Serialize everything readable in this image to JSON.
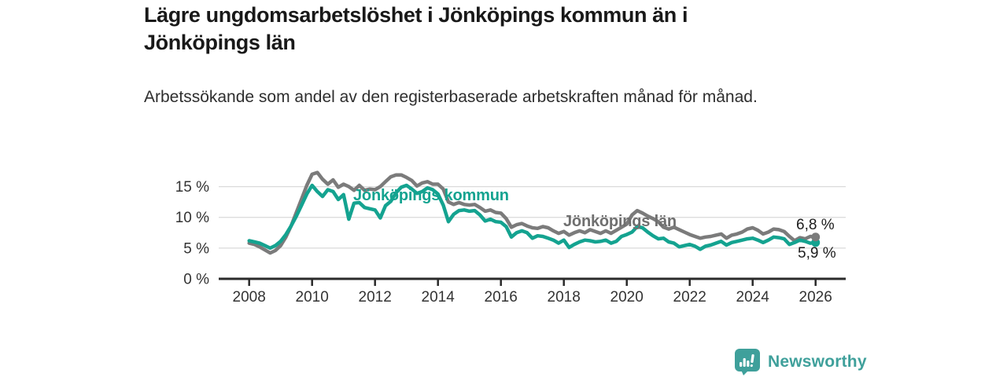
{
  "header": {
    "title": "Lägre ungdomsarbetslöshet i Jönköpings kommun än i Jönköpings län",
    "subtitle": "Arbetssökande som andel av den registerbaserade arbetskraften månad för månad."
  },
  "chart_data": {
    "type": "line",
    "title": "Lägre ungdomsarbetslöshet i Jönköpings kommun än i Jönköpings län",
    "subtitle": "Arbetssökande som andel av den registerbaserade arbetskraften månad för månad.",
    "x_start": 2008,
    "x_end": 2026,
    "x_step_months": 2,
    "unit": "%",
    "ylim": [
      0,
      17.5
    ],
    "grid": "horizontal",
    "legend_position": "inline-labels",
    "yticks": [
      0,
      5,
      10,
      15
    ],
    "ytick_labels": [
      "0 %",
      "5 %",
      "10 %",
      "15 %"
    ],
    "xticks": [
      2008,
      2010,
      2012,
      2014,
      2016,
      2018,
      2020,
      2022,
      2024,
      2026
    ],
    "colors": {
      "axis": "#2a2a2a",
      "grid": "#dadada",
      "tick_label": "#333333"
    },
    "series": [
      {
        "name": "Jönköpings kommun",
        "color": "#14a390",
        "label_color": "#14a390",
        "end_label": "5,9 %",
        "end_value": 5.9,
        "values": [
          6.2,
          6.0,
          5.8,
          5.4,
          5.0,
          5.4,
          6.1,
          7.2,
          8.6,
          10.2,
          12.0,
          13.8,
          15.2,
          14.2,
          13.4,
          14.5,
          14.2,
          12.9,
          13.7,
          9.7,
          12.3,
          12.4,
          11.6,
          11.4,
          11.2,
          9.9,
          11.9,
          12.6,
          14.0,
          14.9,
          15.2,
          14.6,
          13.9,
          14.2,
          14.8,
          14.5,
          13.8,
          12.0,
          9.3,
          10.5,
          11.1,
          11.2,
          11.0,
          11.1,
          10.4,
          9.4,
          9.7,
          9.3,
          9.2,
          8.5,
          6.8,
          7.5,
          7.8,
          7.5,
          6.6,
          7.0,
          6.9,
          6.6,
          6.3,
          5.8,
          6.3,
          5.1,
          5.6,
          6.0,
          6.3,
          6.2,
          6.0,
          6.1,
          6.3,
          5.8,
          6.1,
          6.9,
          7.2,
          7.6,
          8.5,
          8.3,
          7.6,
          7.0,
          6.5,
          6.6,
          6.0,
          5.8,
          5.2,
          5.4,
          5.6,
          5.3,
          4.8,
          5.3,
          5.5,
          5.8,
          6.1,
          5.5,
          5.9,
          6.1,
          6.3,
          6.5,
          6.6,
          6.3,
          5.9,
          6.3,
          6.8,
          6.7,
          6.5,
          5.6,
          5.9,
          6.3,
          6.1,
          5.8,
          5.9
        ]
      },
      {
        "name": "Jönköpings län",
        "color": "#7b7b7b",
        "label_color": "#6f6f6f",
        "end_label": "6,8 %",
        "end_value": 6.8,
        "values": [
          5.8,
          5.6,
          5.2,
          4.7,
          4.2,
          4.6,
          5.4,
          6.8,
          8.6,
          10.8,
          13.0,
          15.2,
          17.0,
          17.3,
          16.2,
          15.4,
          16.1,
          14.9,
          15.4,
          15.0,
          14.4,
          15.2,
          14.4,
          14.6,
          14.5,
          15.0,
          15.8,
          16.6,
          16.9,
          16.9,
          16.5,
          16.0,
          15.1,
          15.6,
          15.8,
          15.4,
          15.4,
          14.6,
          12.5,
          12.1,
          12.4,
          12.1,
          12.0,
          12.1,
          11.6,
          11.0,
          11.2,
          10.8,
          10.7,
          9.8,
          8.4,
          8.8,
          9.0,
          8.6,
          8.3,
          8.2,
          8.5,
          8.3,
          7.8,
          7.4,
          7.7,
          7.1,
          7.5,
          7.8,
          7.5,
          8.0,
          7.7,
          7.4,
          7.8,
          7.4,
          7.9,
          8.4,
          8.9,
          10.4,
          11.1,
          10.7,
          10.2,
          9.8,
          9.3,
          8.4,
          8.1,
          8.4,
          8.0,
          7.6,
          7.2,
          6.9,
          6.6,
          6.8,
          6.9,
          7.1,
          7.3,
          6.6,
          7.1,
          7.3,
          7.6,
          8.1,
          8.3,
          7.9,
          7.3,
          7.6,
          8.1,
          8.0,
          7.7,
          6.9,
          6.2,
          6.7,
          6.5,
          6.9,
          6.8
        ]
      }
    ]
  },
  "footer": {
    "brand": "Newsworthy",
    "brand_color": "#3fa09b",
    "logo_icon": "bar-chart-speech-bubble-icon"
  }
}
